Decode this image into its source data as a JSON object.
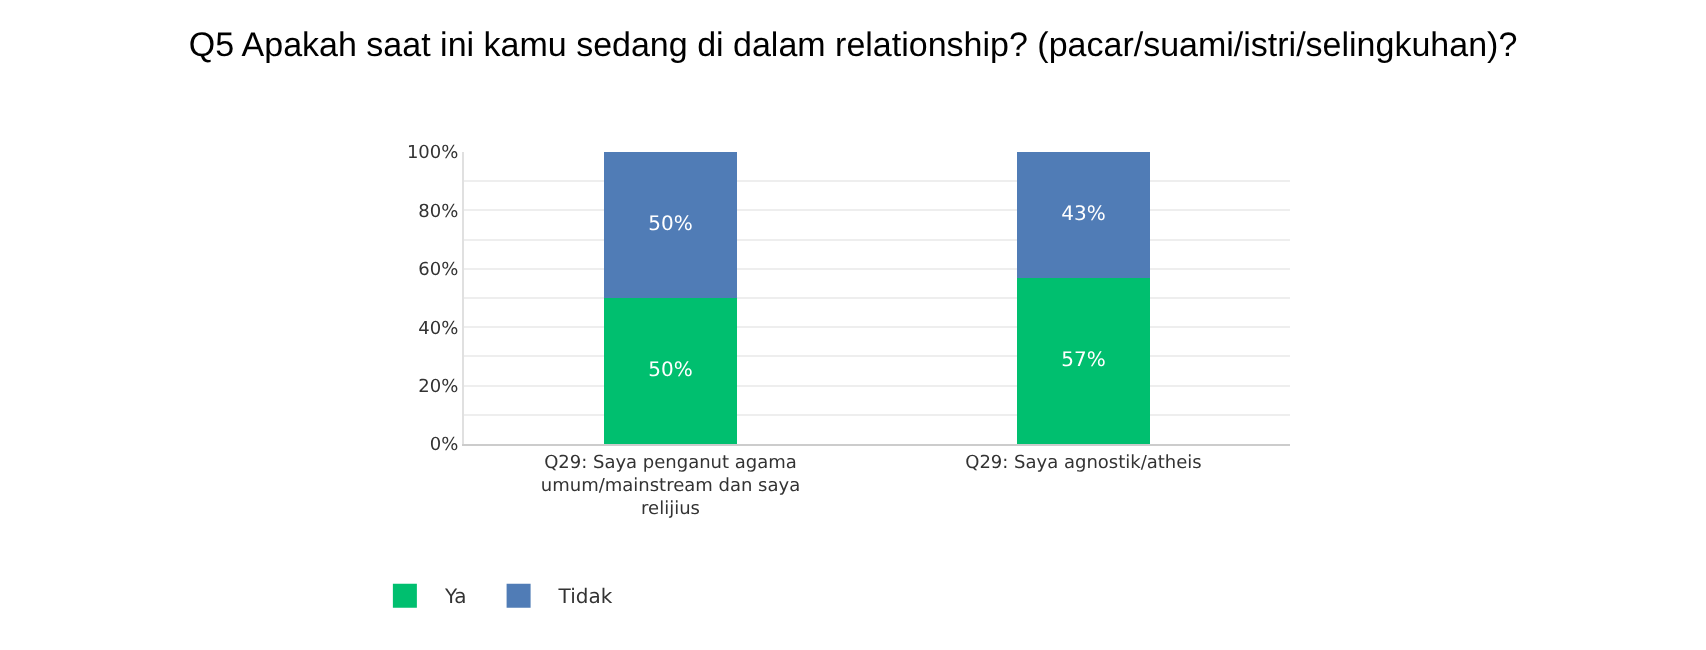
{
  "chart_data": {
    "type": "bar",
    "stacked": true,
    "title": "Q5 Apakah saat ini kamu sedang di dalam relationship? (pacar/suami/istri/selingkuhan)?",
    "categories": [
      "Q29: Saya penganut agama umum/mainstream dan saya relijius",
      "Q29: Saya agnostik/atheis"
    ],
    "series": [
      {
        "name": "Ya",
        "color": "#00bf6f",
        "values": [
          50,
          57
        ],
        "value_labels": [
          "50%",
          "57%"
        ]
      },
      {
        "name": "Tidak",
        "color": "#507cb6",
        "values": [
          50,
          43
        ],
        "value_labels": [
          "50%",
          "43%"
        ]
      }
    ],
    "ylim": [
      0,
      100
    ],
    "yticks": [
      {
        "value": 0,
        "label": "0%"
      },
      {
        "value": 10,
        "label": null
      },
      {
        "value": 20,
        "label": "20%"
      },
      {
        "value": 30,
        "label": null
      },
      {
        "value": 40,
        "label": "40%"
      },
      {
        "value": 50,
        "label": null
      },
      {
        "value": 60,
        "label": "60%"
      },
      {
        "value": 70,
        "label": null
      },
      {
        "value": 80,
        "label": "80%"
      },
      {
        "value": 90,
        "label": null
      },
      {
        "value": 100,
        "label": "100%"
      }
    ],
    "grid": "y",
    "legend": "bottom left"
  }
}
